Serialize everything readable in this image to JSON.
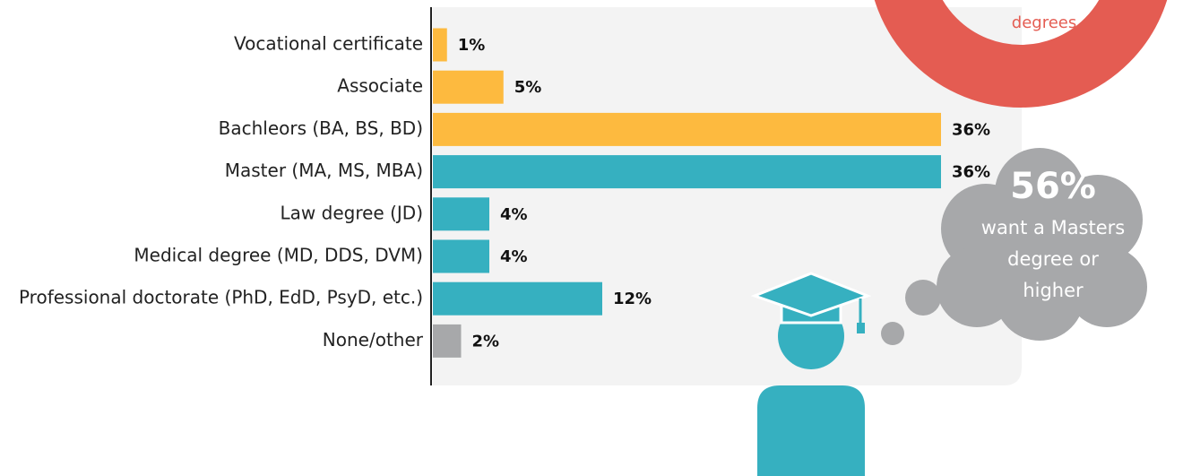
{
  "chart_data": {
    "type": "bar",
    "orientation": "horizontal",
    "categories": [
      "Vocational certificate",
      "Associate",
      "Bachleors (BA, BS, BD)",
      "Master (MA, MS, MBA)",
      "Law degree (JD)",
      "Medical degree (MD, DDS, DVM)",
      "Professional doctorate (PhD, EdD, PsyD, etc.)",
      "None/other"
    ],
    "values": [
      1,
      5,
      36,
      36,
      4,
      4,
      12,
      2
    ],
    "value_labels": [
      "1%",
      "5%",
      "36%",
      "36%",
      "4%",
      "4%",
      "12%",
      "2%"
    ],
    "colors": [
      "#fdba3f",
      "#fdba3f",
      "#fdba3f",
      "#36b0c0",
      "#36b0c0",
      "#36b0c0",
      "#36b0c0",
      "#a7a8aa"
    ],
    "annotations": {
      "donut_text": "degrees",
      "cloud_value": "56%",
      "cloud_lines": [
        "want a Masters",
        "degree or",
        "higher"
      ]
    }
  }
}
